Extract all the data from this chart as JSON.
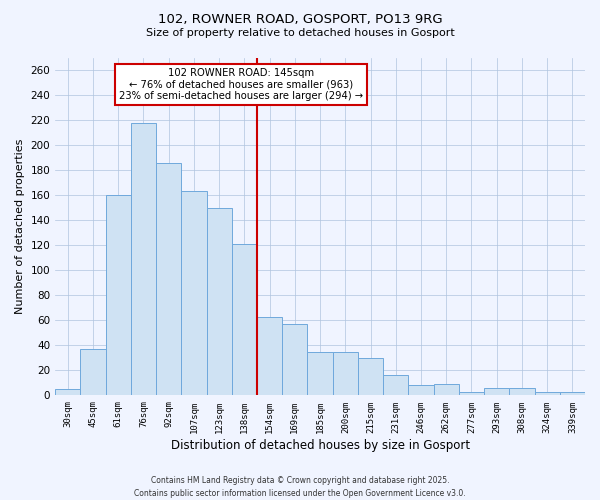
{
  "title": "102, ROWNER ROAD, GOSPORT, PO13 9RG",
  "subtitle": "Size of property relative to detached houses in Gosport",
  "xlabel": "Distribution of detached houses by size in Gosport",
  "ylabel": "Number of detached properties",
  "bar_labels": [
    "30sqm",
    "45sqm",
    "61sqm",
    "76sqm",
    "92sqm",
    "107sqm",
    "123sqm",
    "138sqm",
    "154sqm",
    "169sqm",
    "185sqm",
    "200sqm",
    "215sqm",
    "231sqm",
    "246sqm",
    "262sqm",
    "277sqm",
    "293sqm",
    "308sqm",
    "324sqm",
    "339sqm"
  ],
  "bar_values": [
    5,
    37,
    160,
    218,
    186,
    163,
    150,
    121,
    63,
    57,
    35,
    35,
    30,
    16,
    8,
    9,
    3,
    6,
    6,
    3,
    3
  ],
  "bar_color": "#cfe2f3",
  "bar_edge_color": "#6fa8dc",
  "grid_color": "#b0c4de",
  "vline_x_idx": 7.5,
  "vline_color": "#cc0000",
  "annotation_title": "102 ROWNER ROAD: 145sqm",
  "annotation_line1": "← 76% of detached houses are smaller (963)",
  "annotation_line2": "23% of semi-detached houses are larger (294) →",
  "annotation_box_edge": "#cc0000",
  "annotation_box_face": "#ffffff",
  "ylim": [
    0,
    270
  ],
  "yticks": [
    0,
    20,
    40,
    60,
    80,
    100,
    120,
    140,
    160,
    180,
    200,
    220,
    240,
    260
  ],
  "footer1": "Contains HM Land Registry data © Crown copyright and database right 2025.",
  "footer2": "Contains public sector information licensed under the Open Government Licence v3.0.",
  "background_color": "#f0f4ff",
  "figsize": [
    6.0,
    5.0
  ],
  "dpi": 100
}
